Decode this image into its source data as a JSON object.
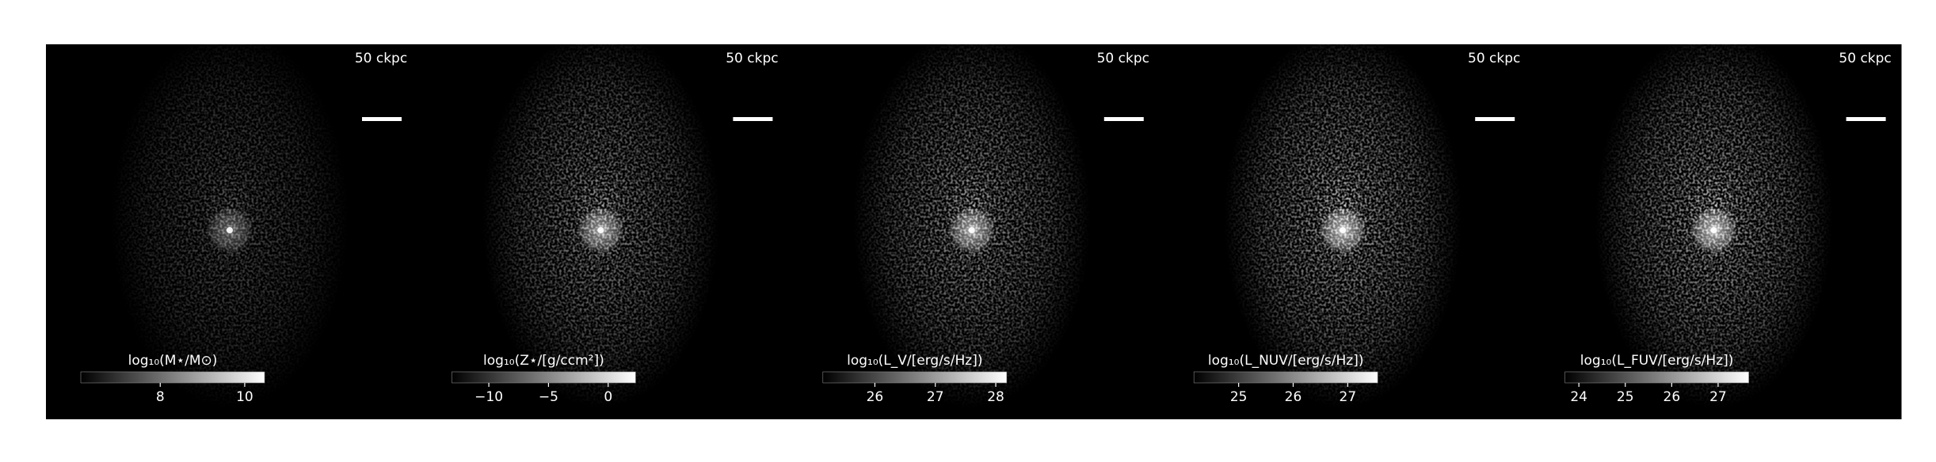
{
  "chart_data": [
    {
      "type": "image",
      "scale_bar": "50 ckpc",
      "colorbar": {
        "label": "log₁₀(M⋆/M⊙)",
        "xlim": [
          6.12,
          10.47
        ],
        "xticks": [
          8,
          10
        ]
      }
    },
    {
      "type": "image",
      "scale_bar": "50 ckpc",
      "colorbar": {
        "label": "log₁₀(Z⋆/[g/ccm²])",
        "xlim": [
          -13.1,
          2.3
        ],
        "xticks": [
          {
            "value": -10,
            "label": "−10"
          },
          {
            "value": -5,
            "label": "−5"
          },
          0
        ]
      }
    },
    {
      "type": "image",
      "scale_bar": "50 ckpc",
      "colorbar": {
        "label": "log₁₀(L_V/[erg/s/Hz])",
        "xlim": [
          25.14,
          28.18
        ],
        "xticks": [
          26,
          27,
          28
        ]
      }
    },
    {
      "type": "image",
      "scale_bar": "50 ckpc",
      "colorbar": {
        "label": "log₁₀(L_NUV/[erg/s/Hz])",
        "xlim": [
          24.18,
          27.55
        ],
        "xticks": [
          25,
          26,
          27
        ]
      }
    },
    {
      "type": "image",
      "scale_bar": "50 ckpc",
      "colorbar": {
        "label": "log₁₀(L_FUV/[erg/s/Hz])",
        "xlim": [
          23.7,
          27.66
        ],
        "xticks": [
          24,
          25,
          26,
          27
        ]
      }
    }
  ]
}
